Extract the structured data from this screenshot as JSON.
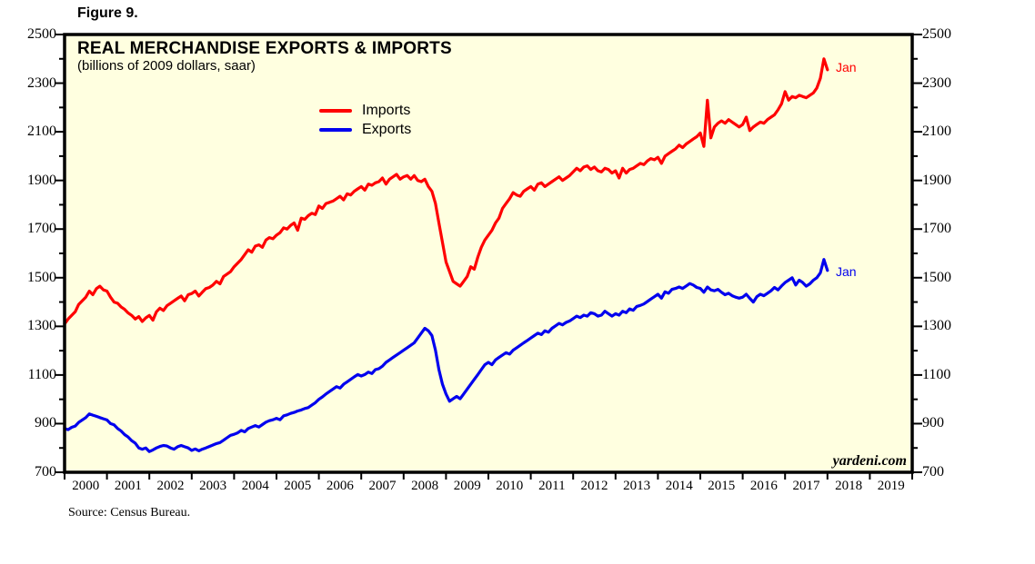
{
  "figure_label": "Figure 9.",
  "chart": {
    "title": "REAL MERCHANDISE EXPORTS & IMPORTS",
    "subtitle": "(billions of 2009 dollars, saar)",
    "watermark": "yardeni.com"
  },
  "source": "Source: Census Bureau.",
  "chart_data": {
    "type": "line",
    "title": "REAL MERCHANDISE EXPORTS & IMPORTS",
    "subtitle": "(billions of 2009 dollars, saar)",
    "frequency": "monthly",
    "x_start": "2000-01",
    "x_end": "2018-01",
    "x_axis_years": [
      2000,
      2001,
      2002,
      2003,
      2004,
      2005,
      2006,
      2007,
      2008,
      2009,
      2010,
      2011,
      2012,
      2013,
      2014,
      2015,
      2016,
      2017,
      2018,
      2019
    ],
    "ylim": [
      700,
      2500
    ],
    "y_ticks_labeled": [
      700,
      900,
      1100,
      1300,
      1500,
      1700,
      1900,
      2100,
      2300,
      2500
    ],
    "y_minor_step": 100,
    "grid": false,
    "legend_position": "inside-top-left",
    "plot_bg": "#FFFFE0",
    "axis_color": "#000000",
    "series": [
      {
        "name": "Imports",
        "color": "#FF0000",
        "end_label": "Jan",
        "values": [
          1310,
          1330,
          1345,
          1360,
          1390,
          1405,
          1420,
          1445,
          1430,
          1455,
          1465,
          1450,
          1445,
          1420,
          1400,
          1395,
          1380,
          1370,
          1355,
          1345,
          1330,
          1340,
          1320,
          1335,
          1345,
          1325,
          1360,
          1375,
          1365,
          1385,
          1395,
          1405,
          1415,
          1425,
          1405,
          1430,
          1435,
          1445,
          1425,
          1440,
          1455,
          1460,
          1470,
          1485,
          1475,
          1505,
          1515,
          1525,
          1545,
          1560,
          1575,
          1595,
          1615,
          1605,
          1630,
          1635,
          1625,
          1655,
          1665,
          1660,
          1675,
          1685,
          1705,
          1700,
          1715,
          1725,
          1695,
          1745,
          1740,
          1755,
          1765,
          1760,
          1795,
          1785,
          1805,
          1810,
          1815,
          1825,
          1835,
          1820,
          1845,
          1840,
          1855,
          1865,
          1875,
          1860,
          1885,
          1880,
          1890,
          1895,
          1910,
          1885,
          1905,
          1915,
          1925,
          1905,
          1915,
          1920,
          1905,
          1920,
          1900,
          1895,
          1905,
          1875,
          1855,
          1805,
          1725,
          1645,
          1565,
          1525,
          1485,
          1475,
          1465,
          1485,
          1505,
          1545,
          1535,
          1585,
          1625,
          1655,
          1675,
          1695,
          1725,
          1745,
          1785,
          1805,
          1825,
          1850,
          1840,
          1835,
          1855,
          1865,
          1875,
          1860,
          1885,
          1890,
          1875,
          1885,
          1895,
          1905,
          1915,
          1900,
          1910,
          1920,
          1935,
          1950,
          1940,
          1955,
          1960,
          1945,
          1955,
          1940,
          1935,
          1950,
          1945,
          1930,
          1940,
          1910,
          1950,
          1930,
          1945,
          1950,
          1960,
          1970,
          1965,
          1980,
          1990,
          1985,
          1995,
          1970,
          2000,
          2010,
          2020,
          2030,
          2045,
          2035,
          2050,
          2060,
          2070,
          2080,
          2095,
          2040,
          2230,
          2075,
          2120,
          2135,
          2145,
          2135,
          2150,
          2140,
          2130,
          2120,
          2130,
          2160,
          2105,
          2120,
          2130,
          2140,
          2135,
          2150,
          2160,
          2170,
          2190,
          2215,
          2265,
          2230,
          2245,
          2240,
          2250,
          2245,
          2240,
          2250,
          2260,
          2280,
          2320,
          2400,
          2355
        ]
      },
      {
        "name": "Exports",
        "color": "#0000EE",
        "end_label": "Jan",
        "values": [
          880,
          875,
          885,
          890,
          905,
          915,
          925,
          940,
          935,
          930,
          925,
          920,
          915,
          900,
          895,
          880,
          870,
          855,
          845,
          830,
          820,
          800,
          795,
          800,
          785,
          792,
          800,
          806,
          810,
          808,
          800,
          795,
          805,
          810,
          805,
          800,
          790,
          796,
          788,
          795,
          800,
          806,
          812,
          818,
          822,
          832,
          842,
          852,
          856,
          862,
          872,
          866,
          880,
          886,
          892,
          886,
          896,
          906,
          912,
          916,
          922,
          916,
          932,
          936,
          942,
          946,
          952,
          956,
          962,
          966,
          976,
          986,
          1000,
          1010,
          1022,
          1032,
          1042,
          1052,
          1046,
          1062,
          1072,
          1082,
          1092,
          1102,
          1096,
          1102,
          1112,
          1106,
          1122,
          1126,
          1136,
          1152,
          1162,
          1172,
          1182,
          1192,
          1202,
          1212,
          1222,
          1232,
          1252,
          1272,
          1292,
          1282,
          1262,
          1202,
          1122,
          1062,
          1022,
          992,
          1002,
          1012,
          1002,
          1022,
          1042,
          1062,
          1082,
          1102,
          1122,
          1142,
          1152,
          1142,
          1162,
          1172,
          1182,
          1192,
          1186,
          1202,
          1212,
          1222,
          1232,
          1242,
          1252,
          1262,
          1272,
          1266,
          1282,
          1276,
          1292,
          1302,
          1312,
          1306,
          1316,
          1322,
          1332,
          1342,
          1336,
          1346,
          1342,
          1356,
          1352,
          1342,
          1346,
          1362,
          1352,
          1342,
          1352,
          1346,
          1362,
          1356,
          1372,
          1366,
          1382,
          1386,
          1392,
          1402,
          1412,
          1422,
          1432,
          1416,
          1442,
          1436,
          1452,
          1456,
          1462,
          1456,
          1466,
          1476,
          1470,
          1460,
          1456,
          1440,
          1462,
          1450,
          1446,
          1452,
          1440,
          1430,
          1436,
          1426,
          1420,
          1416,
          1420,
          1432,
          1415,
          1400,
          1422,
          1432,
          1426,
          1436,
          1446,
          1460,
          1450,
          1466,
          1480,
          1490,
          1500,
          1470,
          1490,
          1480,
          1465,
          1475,
          1490,
          1500,
          1520,
          1575,
          1530
        ]
      }
    ]
  }
}
